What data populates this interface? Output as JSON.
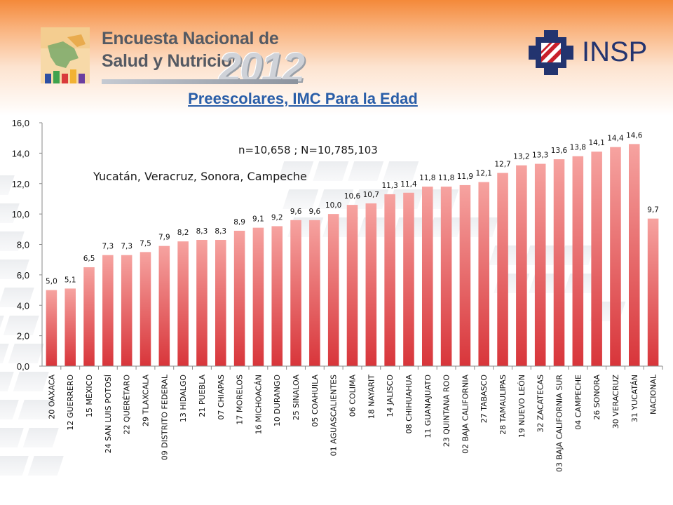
{
  "header": {
    "survey_line1": "Encuesta Nacional de",
    "survey_line2": "Salud y Nutrición",
    "survey_year": "2012",
    "institute": "INSP"
  },
  "notes": {
    "sample": "n=10,658 ; N=10,785,103",
    "states": "Yucatán, Veracruz, Sonora, Campeche"
  },
  "colors": {
    "bar_top": "#f6a3a0",
    "bar_bottom": "#d8353a",
    "title": "#2a5ea8",
    "insp_blue": "#23346f",
    "insp_red": "#c8202a"
  },
  "chart_data": {
    "type": "bar",
    "title": "Preescolares, IMC Para la Edad",
    "categories": [
      "20 OAXACA",
      "12 GUERRERO",
      "15 MÉXICO",
      "24 SAN LUIS POTOSÍ",
      "22 QUERÉTARO",
      "29 TLAXCALA",
      "09 DISTRITO FEDERAL",
      "13 HIDALGO",
      "21 PUEBLA",
      "07 CHIAPAS",
      "17 MORELOS",
      "16 MICHOACÁN",
      "10 DURANGO",
      "25 SINALOA",
      "05 COAHUILA",
      "01 AGUASCALIENTES",
      "06 COLIMA",
      "18 NAYARIT",
      "14 JALISCO",
      "08 CHIHUAHUA",
      "11 GUANAJUATO",
      "23 QUINTANA ROO",
      "02 BAJA CALIFORNIA",
      "27 TABASCO",
      "28 TAMAULIPAS",
      "19 NUEVO LEÓN",
      "32 ZACATECAS",
      "03 BAJA CALIFORNIA SUR",
      "04 CAMPECHE",
      "26 SONORA",
      "30 VERACRUZ",
      "31 YUCATÁN",
      "NACIONAL"
    ],
    "values": [
      5.0,
      5.1,
      6.5,
      7.3,
      7.3,
      7.5,
      7.9,
      8.2,
      8.3,
      8.3,
      8.9,
      9.1,
      9.2,
      9.6,
      9.6,
      10.0,
      10.6,
      10.7,
      11.3,
      11.4,
      11.8,
      11.8,
      11.9,
      12.1,
      12.7,
      13.2,
      13.3,
      13.6,
      13.8,
      14.1,
      14.4,
      14.6,
      9.7
    ],
    "value_labels": [
      "5,0",
      "5,1",
      "6,5",
      "7,3",
      "7,3",
      "7,5",
      "7,9",
      "8,2",
      "8,3",
      "8,3",
      "8,9",
      "9,1",
      "9,2",
      "9,6",
      "9,6",
      "10,0",
      "10,6",
      "10,7",
      "11,3",
      "11,4",
      "11,8",
      "11,8",
      "11,9",
      "12,1",
      "12,7",
      "13,2",
      "13,3",
      "13,6",
      "13,8",
      "14,1",
      "14,4",
      "14,6",
      "9,7"
    ],
    "ylim": [
      0,
      16
    ],
    "yticks": [
      0,
      2,
      4,
      6,
      8,
      10,
      12,
      14,
      16
    ],
    "ytick_labels": [
      "0,0",
      "2,0",
      "4,0",
      "6,0",
      "8,0",
      "10,0",
      "12,0",
      "14,0",
      "16,0"
    ],
    "grid": false,
    "legend": "none"
  }
}
